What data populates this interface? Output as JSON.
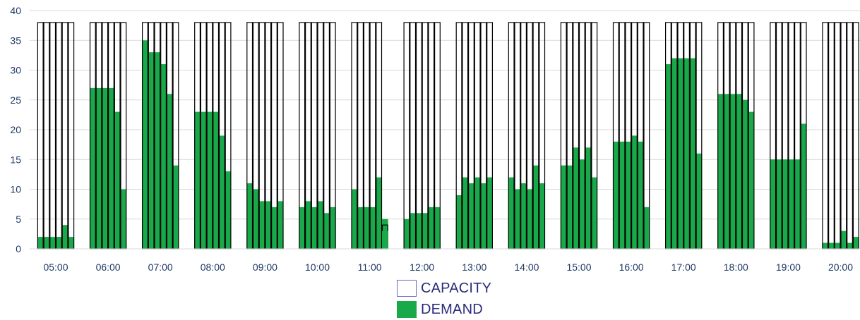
{
  "chart_data": {
    "type": "bar",
    "ylim": [
      0,
      40
    ],
    "yticks": [
      0,
      5,
      10,
      15,
      20,
      25,
      30,
      35,
      40
    ],
    "grid": true,
    "legend_position": "bottom",
    "colors": {
      "capacity_edge": "#000000",
      "demand": "#1aa94a",
      "legend_capacity_edge": "#6a67c9"
    },
    "categories": [
      "05:00",
      "06:00",
      "07:00",
      "08:00",
      "09:00",
      "10:00",
      "11:00",
      "12:00",
      "13:00",
      "14:00",
      "15:00",
      "16:00",
      "17:00",
      "18:00",
      "19:00",
      "20:00"
    ],
    "series": [
      {
        "name": "CAPACITY",
        "values": [
          [
            38,
            38,
            38,
            38,
            38,
            38
          ],
          [
            38,
            38,
            38,
            38,
            38,
            38
          ],
          [
            38,
            38,
            38,
            38,
            38,
            38
          ],
          [
            38,
            38,
            38,
            38,
            38,
            38
          ],
          [
            38,
            38,
            38,
            38,
            38,
            38
          ],
          [
            38,
            38,
            38,
            38,
            38,
            38
          ],
          [
            38,
            38,
            38,
            38,
            38,
            4
          ],
          [
            38,
            38,
            38,
            38,
            38,
            38
          ],
          [
            38,
            38,
            38,
            38,
            38,
            38
          ],
          [
            38,
            38,
            38,
            38,
            38,
            38
          ],
          [
            38,
            38,
            38,
            38,
            38,
            38
          ],
          [
            38,
            38,
            38,
            38,
            38,
            38
          ],
          [
            38,
            38,
            38,
            38,
            38,
            38
          ],
          [
            38,
            38,
            38,
            38,
            38,
            38
          ],
          [
            38,
            38,
            38,
            38,
            38,
            38
          ],
          [
            38,
            38,
            38,
            38,
            38,
            38
          ]
        ]
      },
      {
        "name": "DEMAND",
        "values": [
          [
            2,
            2,
            2,
            2,
            4,
            2
          ],
          [
            27,
            27,
            27,
            27,
            23,
            10
          ],
          [
            35,
            33,
            33,
            31,
            26,
            14
          ],
          [
            23,
            23,
            23,
            23,
            19,
            13
          ],
          [
            11,
            10,
            8,
            8,
            7,
            8
          ],
          [
            7,
            8,
            7,
            8,
            6,
            7
          ],
          [
            10,
            7,
            7,
            7,
            12,
            5
          ],
          [
            5,
            6,
            6,
            6,
            7,
            7
          ],
          [
            9,
            12,
            11,
            12,
            11,
            12
          ],
          [
            12,
            10,
            11,
            10,
            14,
            11
          ],
          [
            14,
            14,
            17,
            15,
            17,
            12
          ],
          [
            18,
            18,
            18,
            19,
            18,
            7
          ],
          [
            31,
            32,
            32,
            32,
            32,
            16
          ],
          [
            26,
            26,
            26,
            26,
            25,
            23
          ],
          [
            15,
            15,
            15,
            15,
            15,
            21
          ],
          [
            1,
            1,
            1,
            3,
            1,
            2
          ]
        ]
      }
    ],
    "overlay": {
      "category": "11:00",
      "slot": 5,
      "value": 3
    }
  }
}
